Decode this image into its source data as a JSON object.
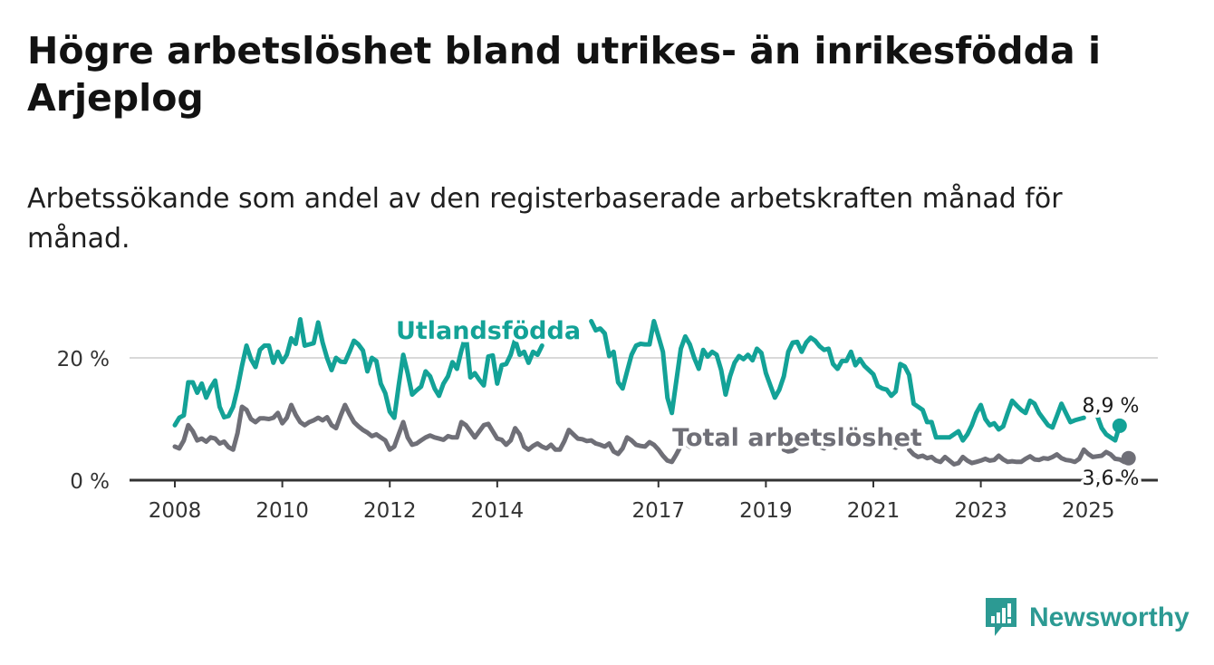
{
  "title": "Högre arbetslöshet bland utrikes- än inrikesfödda i Arjeplog",
  "subtitle": "Arbetssökande som andel av den registerbaserade arbetskraften månad för månad.",
  "brand": {
    "name": "Newsworthy",
    "icon": "newsworthy-logo-icon",
    "color": "#2c9a93"
  },
  "chart_data": {
    "type": "line",
    "title": "Högre arbetslöshet bland utrikes- än inrikesfödda i Arjeplog",
    "subtitle": "Arbetssökande som andel av den registerbaserade arbetskraften månad för månad.",
    "xlabel": "",
    "ylabel": "",
    "x_range": [
      "2008-01",
      "2025-05"
    ],
    "ylim": [
      0,
      27
    ],
    "y_ticks": [
      {
        "value": 0,
        "label": "0 %"
      },
      {
        "value": 20,
        "label": "20 %"
      }
    ],
    "x_ticks": [
      "2008",
      "2010",
      "2012",
      "2014",
      "2017",
      "2019",
      "2021",
      "2023",
      "2025"
    ],
    "grid": true,
    "legend": "inline labels",
    "series": [
      {
        "name": "Utlandsfödda",
        "color": "#13a297",
        "start": "2008-01",
        "end_label": "8,9 %",
        "values": [
          9.0,
          10.2,
          10.6,
          16.0,
          16.0,
          14.3,
          15.8,
          13.5,
          15.1,
          16.3,
          12.0,
          10.3,
          10.5,
          12.0,
          15.0,
          18.7,
          22.0,
          19.8,
          18.5,
          21.3,
          22.0,
          22.0,
          19.2,
          21.0,
          19.3,
          20.5,
          23.2,
          22.3,
          26.3,
          22.0,
          22.2,
          22.4,
          25.8,
          22.5,
          20.0,
          18.0,
          20.0,
          19.4,
          19.3,
          21.0,
          22.8,
          22.2,
          21.2,
          17.8,
          20.0,
          19.5,
          15.8,
          14.2,
          11.2,
          10.2,
          15.5,
          20.5,
          17.5,
          14.0,
          14.7,
          15.3,
          17.8,
          17.0,
          15.0,
          13.8,
          15.8,
          17.0,
          19.3,
          18.2,
          21.2,
          23.7,
          16.8,
          17.5,
          16.4,
          15.5,
          20.2,
          20.4,
          15.8,
          18.8,
          19.0,
          20.5,
          23.0,
          20.5,
          21.0,
          19.2,
          21.0,
          20.5,
          22.0,
          null,
          null,
          null,
          null,
          null,
          null,
          null,
          null,
          null,
          null,
          26.0,
          24.5,
          24.8,
          24.0,
          20.3,
          21.0,
          16.0,
          15.0,
          17.8,
          20.5,
          22.0,
          22.3,
          22.2,
          22.2,
          26.0,
          23.5,
          21.0,
          13.5,
          11.0,
          16.2,
          21.5,
          23.5,
          22.2,
          20.0,
          18.2,
          21.3,
          20.2,
          21.0,
          20.5,
          18.0,
          14.0,
          17.0,
          19.2,
          20.3,
          19.8,
          20.5,
          19.6,
          21.5,
          20.8,
          17.5,
          15.5,
          13.5,
          14.8,
          17.0,
          21.0,
          22.5,
          22.6,
          21.0,
          22.5,
          23.3,
          22.8,
          21.9,
          21.3,
          21.5,
          19.0,
          18.2,
          19.5,
          19.5,
          21.0,
          18.8,
          19.8,
          18.7,
          18.0,
          17.3,
          15.4,
          15.0,
          14.8,
          13.8,
          14.5,
          19.0,
          18.6,
          17.2,
          12.5,
          12.0,
          11.5,
          9.5,
          9.5,
          7.0,
          7.0,
          7.0,
          7.0,
          7.5,
          8.0,
          6.5,
          7.5,
          9.0,
          11.0,
          12.3,
          10.0,
          9.0,
          9.3,
          8.3,
          8.8,
          11.0,
          13.0,
          12.2,
          11.5,
          11.0,
          13.0,
          12.5,
          11.0,
          10.0,
          9.0,
          8.6,
          10.5,
          12.5,
          11.0,
          9.5,
          9.8,
          10.0,
          10.2,
          null,
          null,
          10.5,
          8.5,
          7.5,
          7.0,
          6.5,
          8.9
        ]
      },
      {
        "name": "Total arbetslöshet",
        "color": "#6f6f77",
        "start": "2008-01",
        "end_label": "3,6 %",
        "values": [
          5.5,
          5.2,
          6.5,
          9.0,
          8.0,
          6.5,
          6.8,
          6.3,
          7.0,
          6.8,
          6.0,
          6.3,
          5.4,
          5.0,
          7.7,
          12.0,
          11.5,
          10.0,
          9.5,
          10.1,
          10.1,
          10.0,
          10.2,
          11.0,
          9.3,
          10.2,
          12.3,
          10.7,
          9.5,
          9.0,
          9.5,
          9.8,
          10.2,
          9.8,
          10.3,
          9.0,
          8.5,
          10.5,
          12.3,
          10.8,
          9.5,
          8.8,
          8.2,
          7.8,
          7.2,
          7.5,
          7.0,
          6.5,
          5.0,
          5.5,
          7.5,
          9.5,
          7.0,
          5.8,
          6.0,
          6.5,
          7.0,
          7.3,
          7.0,
          6.8,
          6.6,
          7.2,
          7.0,
          7.0,
          9.5,
          9.0,
          8.0,
          7.0,
          8.0,
          9.0,
          9.2,
          8.0,
          6.8,
          6.6,
          5.8,
          6.5,
          8.5,
          7.5,
          5.5,
          5.0,
          5.6,
          6.0,
          5.5,
          5.2,
          5.8,
          5.0,
          5.0,
          6.4,
          8.2,
          7.5,
          6.8,
          6.7,
          6.4,
          6.5,
          6.0,
          5.8,
          5.5,
          6.0,
          4.7,
          4.3,
          5.2,
          7.0,
          6.5,
          5.8,
          5.6,
          5.5,
          6.2,
          5.8,
          5.0,
          4.0,
          3.2,
          3.0,
          4.2,
          5.6,
          6.0,
          5.5,
          null,
          null,
          null,
          null,
          null,
          null,
          null,
          null,
          null,
          null,
          null,
          null,
          null,
          null,
          null,
          null,
          null,
          null,
          null,
          null,
          5.0,
          4.7,
          4.8,
          5.3,
          null,
          null,
          null,
          null,
          5.5,
          5.2,
          null,
          null,
          null,
          null,
          null,
          null,
          null,
          null,
          null,
          null,
          null,
          null,
          null,
          null,
          5.6,
          5.3,
          null,
          null,
          5.0,
          4.2,
          3.8,
          4.0,
          3.6,
          3.8,
          3.2,
          3.0,
          3.8,
          3.2,
          2.6,
          2.8,
          3.8,
          3.2,
          2.8,
          3.0,
          3.2,
          3.5,
          3.2,
          3.3,
          4.0,
          3.4,
          3.0,
          3.1,
          3.0,
          3.0,
          3.5,
          3.9,
          3.4,
          3.3,
          3.6,
          3.5,
          3.8,
          4.2,
          3.6,
          3.3,
          3.2,
          3.0,
          3.5,
          5.0,
          4.3,
          3.8,
          3.9,
          4.0,
          4.6,
          4.2,
          3.5,
          3.4,
          3.0,
          3.6
        ]
      }
    ]
  }
}
